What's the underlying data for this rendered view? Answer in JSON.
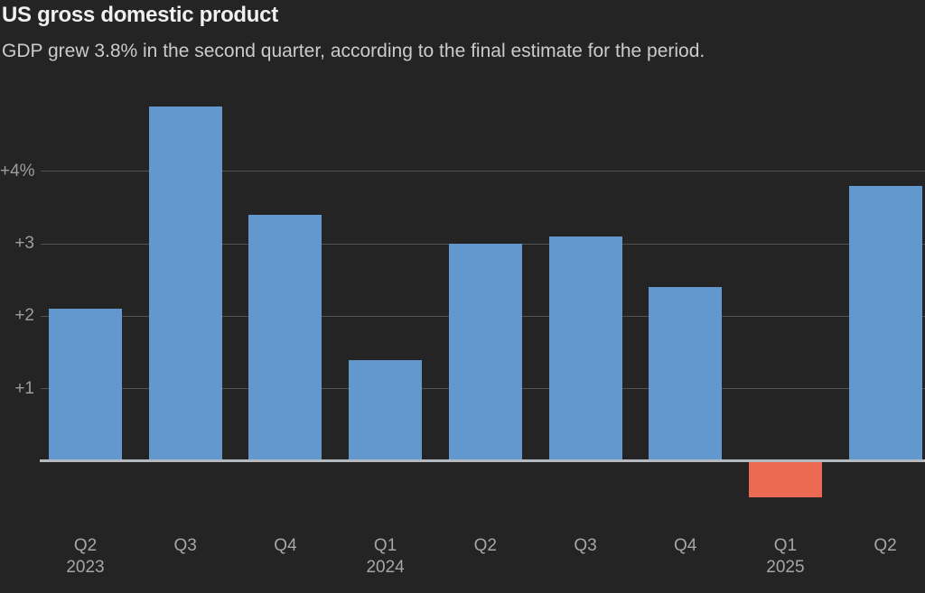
{
  "chart_data": {
    "type": "bar",
    "title": "US gross domestic product",
    "subtitle": "GDP grew 3.8% in the second quarter, according to the final estimate for the period.",
    "categories": [
      "Q2",
      "Q3",
      "Q4",
      "Q1",
      "Q2",
      "Q3",
      "Q4",
      "Q1",
      "Q2"
    ],
    "year_labels": [
      "2023",
      "",
      "",
      "2024",
      "",
      "",
      "",
      "2025",
      ""
    ],
    "values": [
      2.1,
      4.9,
      3.4,
      1.4,
      3.0,
      3.1,
      2.4,
      -0.5,
      3.8
    ],
    "unit": "%",
    "yticks": [
      {
        "value": 1,
        "label": "+1"
      },
      {
        "value": 2,
        "label": "+2"
      },
      {
        "value": 3,
        "label": "+3"
      },
      {
        "value": 4,
        "label": "+4%"
      }
    ],
    "ylim": [
      -0.9,
      5.0
    ],
    "grid": true,
    "legend": false,
    "colors": {
      "bar_positive": "#6398ce",
      "bar_negative": "#ec6a52",
      "background": "#242424",
      "gridline": "#525252",
      "zero_baseline": "#b4bac0",
      "title_text": "#f0f0f0",
      "subtitle_text": "#cbcbcb",
      "tick_text": "#a6a6a6"
    }
  }
}
